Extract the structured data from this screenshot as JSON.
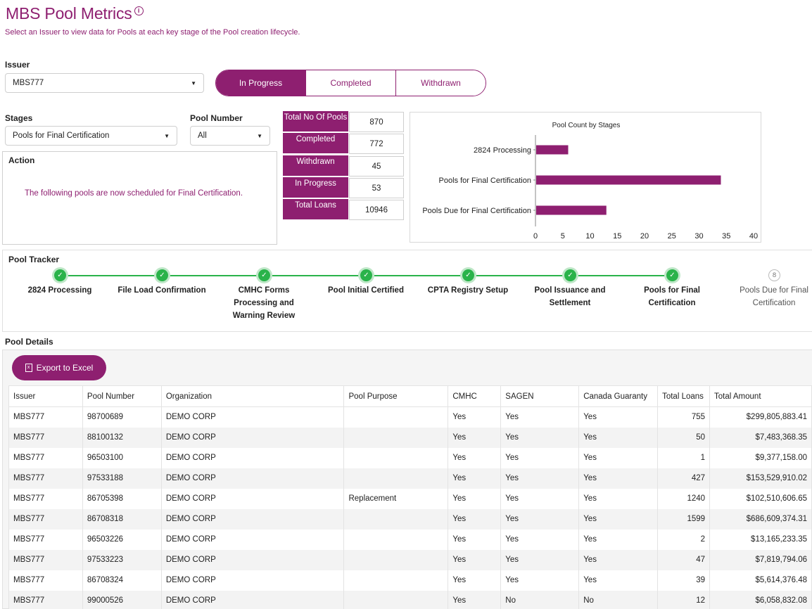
{
  "header": {
    "title": "MBS Pool Metrics",
    "subtitle": "Select an Issuer to view data for Pools at each key stage of the Pool creation lifecycle."
  },
  "filters": {
    "issuer_label": "Issuer",
    "issuer_value": "MBS777",
    "stages_label": "Stages",
    "stages_value": "Pools for Final Certification",
    "pool_number_label": "Pool Number",
    "pool_number_value": "All"
  },
  "status_tabs": [
    {
      "label": "In Progress",
      "active": true
    },
    {
      "label": "Completed",
      "active": false
    },
    {
      "label": "Withdrawn",
      "active": false
    }
  ],
  "stats": [
    {
      "label": "Total No Of Pools",
      "value": "870"
    },
    {
      "label": "Completed",
      "value": "772"
    },
    {
      "label": "Withdrawn",
      "value": "45"
    },
    {
      "label": "In Progress",
      "value": "53"
    },
    {
      "label": "Total Loans",
      "value": "10946"
    }
  ],
  "action": {
    "label": "Action",
    "message": "The following pools are now scheduled for Final Certification."
  },
  "chart_data": {
    "type": "bar",
    "orientation": "horizontal",
    "title": "Pool Count by Stages",
    "categories": [
      "2824 Processing",
      "Pools for Final Certification",
      "Pools Due for Final Certification"
    ],
    "values": [
      6,
      34,
      13
    ],
    "xlim": [
      0,
      40
    ],
    "ticks": [
      "0",
      "5",
      "10",
      "15",
      "20",
      "25",
      "30",
      "35",
      "40"
    ],
    "color": "#8e1f70",
    "grid": false
  },
  "tracker": {
    "label": "Pool Tracker",
    "steps": [
      {
        "label": "2824 Processing",
        "done": true
      },
      {
        "label": "File Load Confirmation",
        "done": true
      },
      {
        "label": "CMHC Forms Processing and Warning Review",
        "done": true
      },
      {
        "label": "Pool Initial Certified",
        "done": true
      },
      {
        "label": "CPTA Registry Setup",
        "done": true
      },
      {
        "label": "Pool Issuance and Settlement",
        "done": true
      },
      {
        "label": "Pools for Final Certification",
        "done": true
      },
      {
        "label": "Pools Due for Final Certification",
        "done": false,
        "number": "8"
      }
    ]
  },
  "details": {
    "label": "Pool Details",
    "export_label": "Export to Excel",
    "columns": [
      "Issuer",
      "Pool Number",
      "Organization",
      "Pool Purpose",
      "CMHC",
      "SAGEN",
      "Canada Guaranty",
      "Total Loans",
      "Total Amount"
    ],
    "rows": [
      [
        "MBS777",
        "98700689",
        "DEMO CORP",
        "",
        "Yes",
        "Yes",
        "Yes",
        "755",
        "$299,805,883.41"
      ],
      [
        "MBS777",
        "88100132",
        "DEMO CORP",
        "",
        "Yes",
        "Yes",
        "Yes",
        "50",
        "$7,483,368.35"
      ],
      [
        "MBS777",
        "96503100",
        "DEMO CORP",
        "",
        "Yes",
        "Yes",
        "Yes",
        "1",
        "$9,377,158.00"
      ],
      [
        "MBS777",
        "97533188",
        "DEMO CORP",
        "",
        "Yes",
        "Yes",
        "Yes",
        "427",
        "$153,529,910.02"
      ],
      [
        "MBS777",
        "86705398",
        "DEMO CORP",
        "Replacement",
        "Yes",
        "Yes",
        "Yes",
        "1240",
        "$102,510,606.65"
      ],
      [
        "MBS777",
        "86708318",
        "DEMO CORP",
        "",
        "Yes",
        "Yes",
        "Yes",
        "1599",
        "$686,609,374.31"
      ],
      [
        "MBS777",
        "96503226",
        "DEMO CORP",
        "",
        "Yes",
        "Yes",
        "Yes",
        "2",
        "$13,165,233.35"
      ],
      [
        "MBS777",
        "97533223",
        "DEMO CORP",
        "",
        "Yes",
        "Yes",
        "Yes",
        "47",
        "$7,819,794.06"
      ],
      [
        "MBS777",
        "86708324",
        "DEMO CORP",
        "",
        "Yes",
        "Yes",
        "Yes",
        "39",
        "$5,614,376.48"
      ],
      [
        "MBS777",
        "99000526",
        "DEMO CORP",
        "",
        "Yes",
        "No",
        "No",
        "12",
        "$6,058,832.08"
      ]
    ]
  }
}
